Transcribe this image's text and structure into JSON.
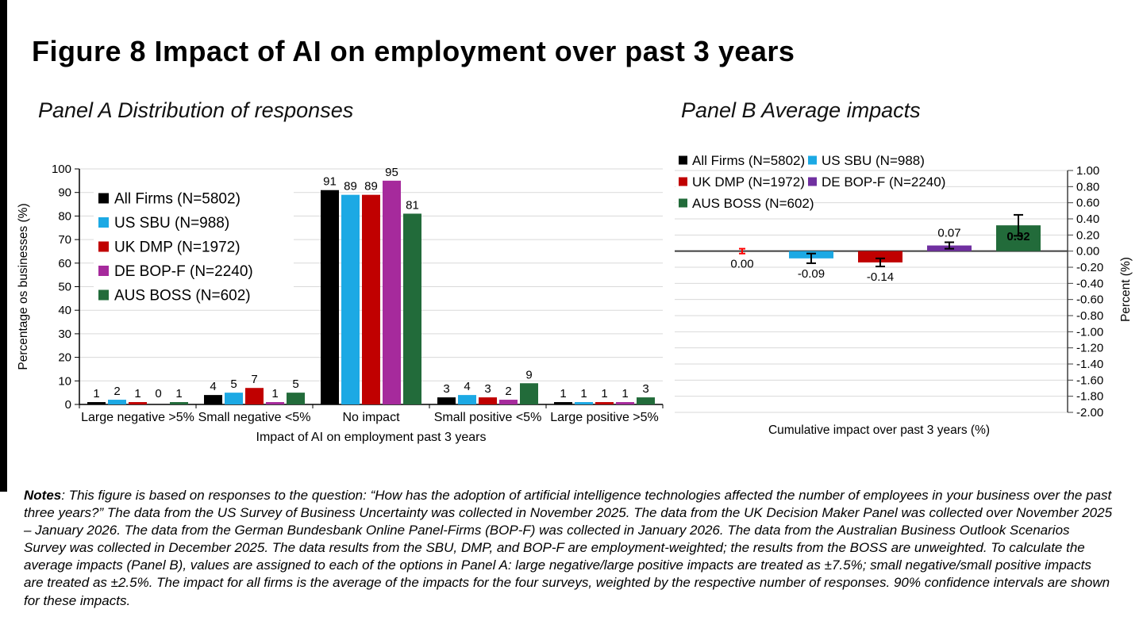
{
  "figure": {
    "title": "Figure 8 Impact of AI on employment over past 3 years"
  },
  "notes": {
    "label": "Notes",
    "body": ": This figure is based on responses to the question: “How has the adoption of artificial intelligence technologies affected the number of employees in your business over the past three years?” The data from the US Survey of Business Uncertainty was collected in November 2025. The data from the UK Decision Maker Panel was collected over November 2025 – January 2026. The data from the German Bundesbank Online Panel-Firms (BOP-F) was collected in January 2026.  The data from the Australian Business Outlook Scenarios Survey was collected in December 2025. The data results from the SBU, DMP, and BOP-F are employment-weighted; the results from the BOSS are unweighted. To calculate the average impacts (Panel B), values are assigned to each of the options in Panel A: large negative/large positive impacts are treated as ±7.5%; small negative/small positive impacts are treated as ±2.5%. The impact for all firms is the average of the impacts for the four surveys, weighted by the respective number of responses. 90% confidence intervals are shown for these impacts."
  },
  "chart_data": [
    {
      "type": "bar",
      "panel": "A",
      "title": "Panel A Distribution of responses",
      "categories": [
        "Large negative >5%",
        "Small negative <5%",
        "No impact",
        "Small positive <5%",
        "Large positive >5%"
      ],
      "series": [
        {
          "name": "All Firms (N=5802)",
          "color": "#000000",
          "values": [
            1,
            4,
            91,
            3,
            1
          ]
        },
        {
          "name": "US SBU (N=988)",
          "color": "#1CA9E4",
          "values": [
            2,
            5,
            89,
            4,
            1
          ]
        },
        {
          "name": "UK DMP (N=1972)",
          "color": "#C00000",
          "values": [
            1,
            7,
            89,
            3,
            1
          ]
        },
        {
          "name": "DE BOP-F (N=2240)",
          "color": "#A62A9C",
          "values": [
            0,
            1,
            95,
            2,
            1
          ]
        },
        {
          "name": "AUS BOSS (N=602)",
          "color": "#226B3A",
          "values": [
            1,
            5,
            81,
            9,
            3
          ]
        }
      ],
      "xlabel": "Impact of AI on employment past 3 years",
      "ylabel": "Percentage os businesses (%)",
      "ylim": [
        0,
        100
      ],
      "yticks": [
        "0",
        "10",
        "20",
        "30",
        "40",
        "50",
        "60",
        "70",
        "80",
        "90",
        "100"
      ],
      "grid": true,
      "legend_position": "upper-left-inside",
      "value_labels_shown": true,
      "gridline_color": "#D9D9D9"
    },
    {
      "type": "bar",
      "panel": "B",
      "title": "Panel B Average impacts",
      "xlabel": "Cumulative impact over past 3 years (%)",
      "ylabel": "Percent (%)",
      "ylim": [
        -2.0,
        1.0
      ],
      "yticks": [
        "1.00",
        "0.80",
        "0.60",
        "0.40",
        "0.20",
        "0.00",
        "-0.20",
        "-0.40",
        "-0.60",
        "-0.80",
        "-1.00",
        "-1.20",
        "-1.40",
        "-1.60",
        "-1.80",
        "-2.00"
      ],
      "axis_side": "right",
      "grid": true,
      "error_bars_note": "90% confidence intervals (whisker extents estimated from pixels)",
      "bars": [
        {
          "name": "All Firms (N=5802)",
          "color": "#000000",
          "value": 0.0,
          "label": "0.00",
          "label_pos": "below",
          "err_low": -0.03,
          "err_high": 0.03,
          "err_color": "#FF0000"
        },
        {
          "name": "US SBU (N=988)",
          "color": "#1CA9E4",
          "value": -0.09,
          "label": "-0.09",
          "label_pos": "below",
          "err_low": -0.15,
          "err_high": -0.03,
          "err_color": "#000000"
        },
        {
          "name": "UK DMP (N=1972)",
          "color": "#C00000",
          "value": -0.14,
          "label": "-0.14",
          "label_pos": "below",
          "err_low": -0.19,
          "err_high": -0.09,
          "err_color": "#000000"
        },
        {
          "name": "DE BOP-F (N=2240)",
          "color": "#7030A0",
          "value": 0.07,
          "label": "0.07",
          "label_pos": "above",
          "err_low": 0.03,
          "err_high": 0.11,
          "err_color": "#000000"
        },
        {
          "name": "AUS BOSS (N=602)",
          "color": "#226B3A",
          "value": 0.32,
          "label": "0.32",
          "label_pos": "inside",
          "err_low": 0.19,
          "err_high": 0.45,
          "err_color": "#000000"
        }
      ],
      "legend_grid": [
        [
          0,
          1
        ],
        [
          2,
          3
        ],
        [
          4
        ]
      ],
      "gridline_color": "#D9D9D9"
    }
  ]
}
